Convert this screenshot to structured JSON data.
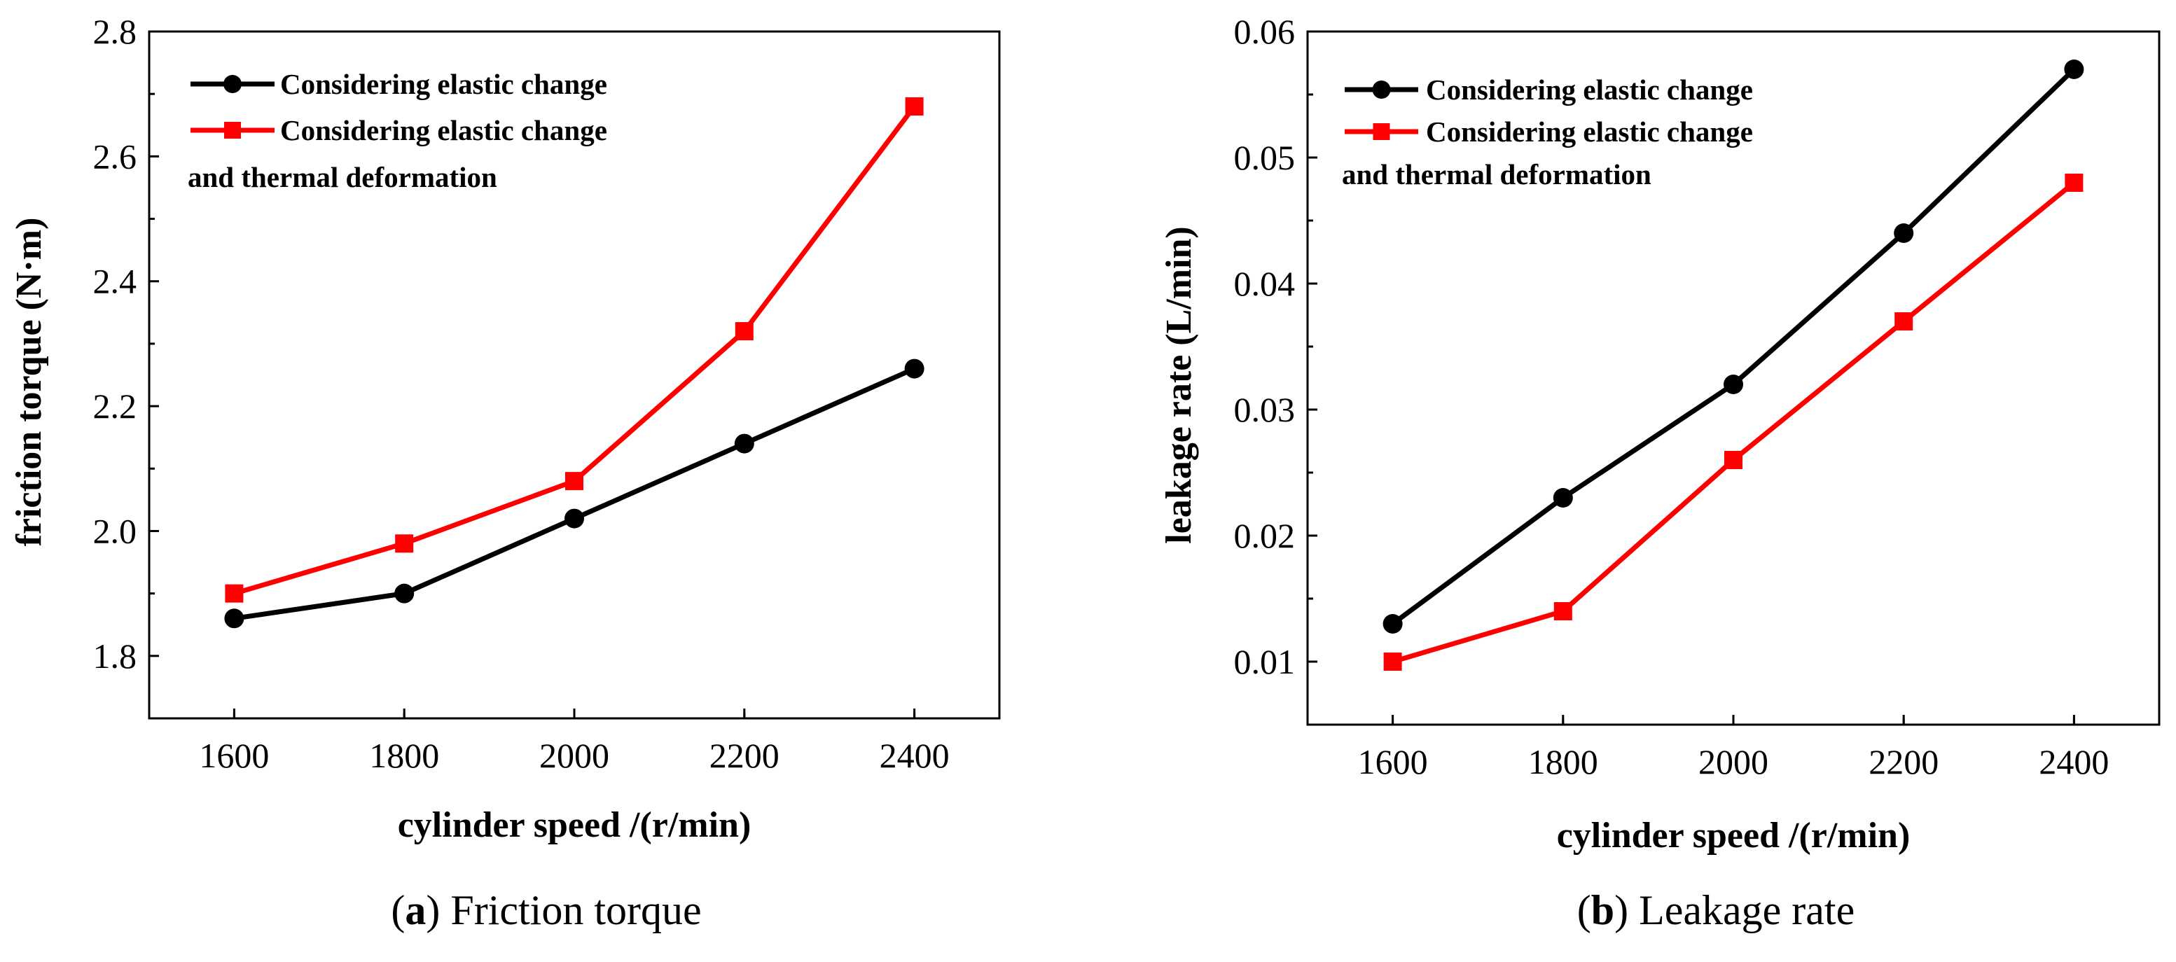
{
  "captions": [
    {
      "letter": "a",
      "text": " Friction torque"
    },
    {
      "letter": "b",
      "text": " Leakage rate"
    }
  ],
  "chart_data": [
    {
      "type": "line",
      "xlabel": "cylinder speed /(r/min)",
      "ylabel": "friction torque (N·m)",
      "x": [
        1600,
        1800,
        2000,
        2200,
        2400
      ],
      "xlim": [
        1500,
        2500
      ],
      "ylim": [
        1.7,
        2.8
      ],
      "xticks": [
        "1600",
        "1800",
        "2000",
        "2200",
        "2400"
      ],
      "yticks": [
        "1.8",
        "2.0",
        "2.2",
        "2.4",
        "2.6",
        "2.8"
      ],
      "grid": false,
      "legend_position": "top-left",
      "series": [
        {
          "name": "Considering elastic change",
          "legend_lines": [
            "Considering elastic change"
          ],
          "color": "#000000",
          "marker": "circle",
          "values": [
            1.86,
            1.9,
            2.02,
            2.14,
            2.26
          ]
        },
        {
          "name": "Considering elastic change and thermal deformation",
          "legend_lines": [
            "Considering elastic change",
            "and thermal deformation"
          ],
          "color": "#ff0000",
          "marker": "square",
          "values": [
            1.9,
            1.98,
            2.08,
            2.32,
            2.68
          ]
        }
      ]
    },
    {
      "type": "line",
      "xlabel": "cylinder speed /(r/min)",
      "ylabel": "leakage rate (L/min)",
      "x": [
        1600,
        1800,
        2000,
        2200,
        2400
      ],
      "xlim": [
        1500,
        2500
      ],
      "ylim": [
        0.005,
        0.06
      ],
      "xticks": [
        "1600",
        "1800",
        "2000",
        "2200",
        "2400"
      ],
      "yticks": [
        "0.01",
        "0.02",
        "0.03",
        "0.04",
        "0.05",
        "0.06"
      ],
      "grid": false,
      "legend_position": "top-left",
      "series": [
        {
          "name": "Considering elastic change",
          "legend_lines": [
            "Considering elastic change"
          ],
          "color": "#000000",
          "marker": "circle",
          "values": [
            0.013,
            0.023,
            0.032,
            0.044,
            0.057
          ]
        },
        {
          "name": "Considering elastic change and thermal deformation",
          "legend_lines": [
            "Considering elastic change",
            "and thermal deformation"
          ],
          "color": "#ff0000",
          "marker": "square",
          "values": [
            0.01,
            0.014,
            0.026,
            0.037,
            0.048
          ]
        }
      ]
    }
  ]
}
